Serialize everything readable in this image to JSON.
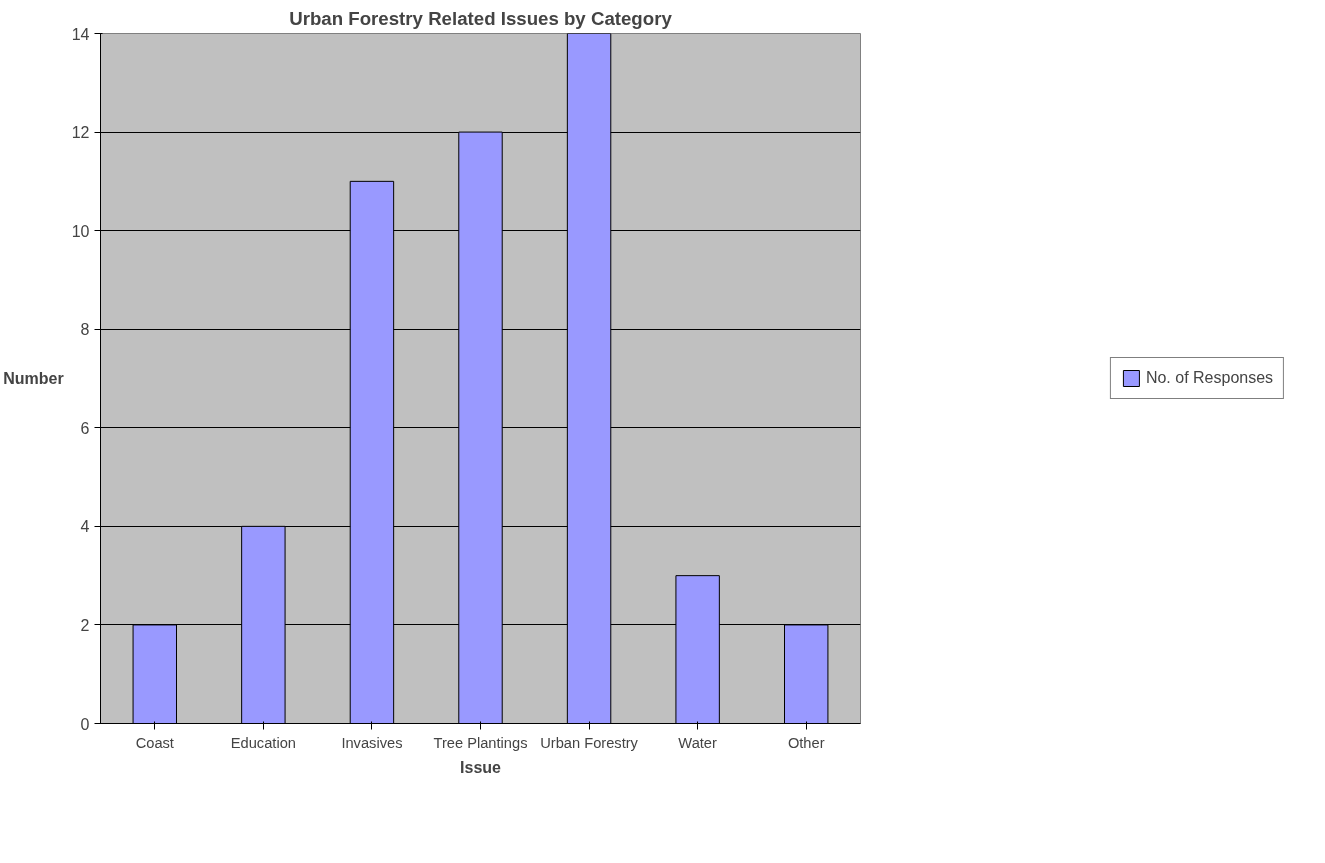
{
  "chart_data": {
    "type": "bar",
    "title": "Urban Forestry Related Issues by Category",
    "xlabel": "Issue",
    "ylabel": "Number",
    "categories": [
      "Coast",
      "Education",
      "Invasives",
      "Tree Plantings",
      "Urban Forestry",
      "Water",
      "Other"
    ],
    "series": [
      {
        "name": "No. of Responses",
        "color": "#9999ff",
        "values": [
          2,
          4,
          11,
          12,
          14,
          3,
          2
        ]
      }
    ],
    "ylim": [
      0,
      14
    ],
    "yticks": [
      0,
      2,
      4,
      6,
      8,
      10,
      12,
      14
    ],
    "grid": "y",
    "legend": "right"
  }
}
